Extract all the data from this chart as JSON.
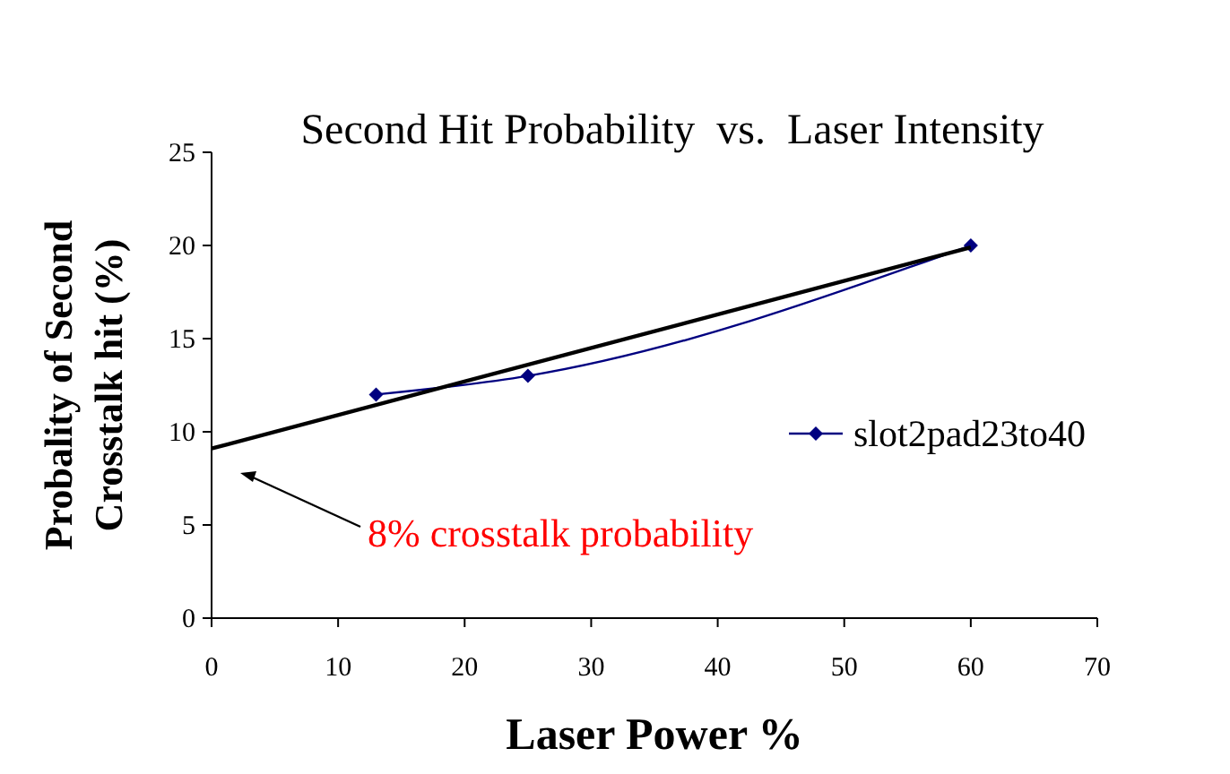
{
  "chart_data": {
    "type": "line",
    "title": "Second Hit Probability  vs.  Laser Intensity",
    "xlabel": "Laser Power %",
    "ylabel": "Probality of Second Crosstalk hit (%)",
    "xlim": [
      0,
      70
    ],
    "xticks": [
      0,
      10,
      20,
      30,
      40,
      50,
      60,
      70
    ],
    "ylim": [
      0,
      25
    ],
    "yticks": [
      0,
      5,
      10,
      15,
      20,
      25
    ],
    "grid": false,
    "legend": "right",
    "series": [
      {
        "name": "slot2pad23to40",
        "color": "#000080",
        "x": [
          13,
          25,
          60
        ],
        "values": [
          12,
          13,
          20
        ],
        "marker": "diamond"
      },
      {
        "type": "line",
        "color": "#000000",
        "x": [
          0,
          60
        ],
        "values": [
          9.1,
          19.9
        ],
        "marker": "none"
      }
    ],
    "annotations": [
      "8% crosstalk probability"
    ]
  }
}
